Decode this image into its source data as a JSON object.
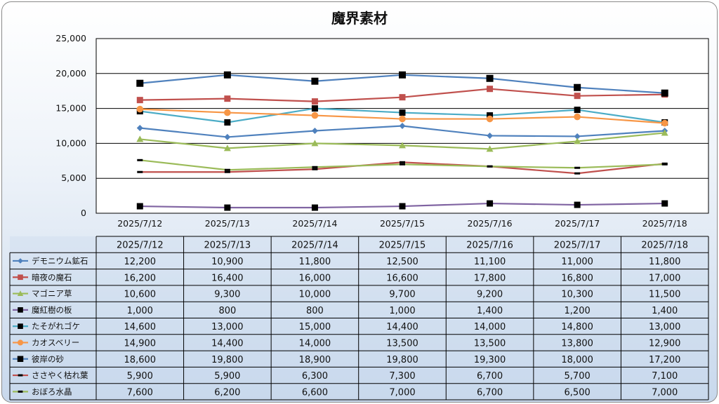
{
  "chart_data": {
    "type": "line",
    "title": "魔界素材",
    "xlabel": "",
    "ylabel": "",
    "ylim": [
      0,
      25000
    ],
    "yticks": [
      "0",
      "5,000",
      "10,000",
      "15,000",
      "20,000",
      "25,000"
    ],
    "grid": true,
    "legend": "data-table",
    "categories": [
      "2025/7/12",
      "2025/7/13",
      "2025/7/14",
      "2025/7/15",
      "2025/7/16",
      "2025/7/17",
      "2025/7/18"
    ],
    "series": [
      {
        "name": "デモニウム鉱石",
        "color": "#4F81BD",
        "marker": "diamond",
        "line": true,
        "values": [
          12200,
          10900,
          11800,
          12500,
          11100,
          11000,
          11800
        ],
        "labels": [
          "12,200",
          "10,900",
          "11,800",
          "12,500",
          "11,100",
          "11,000",
          "11,800"
        ]
      },
      {
        "name": "暗夜の魔石",
        "color": "#C0504D",
        "marker": "square",
        "line": true,
        "values": [
          16200,
          16400,
          16000,
          16600,
          17800,
          16800,
          17000
        ],
        "labels": [
          "16,200",
          "16,400",
          "16,000",
          "16,600",
          "17,800",
          "16,800",
          "17,000"
        ]
      },
      {
        "name": "マゴニア草",
        "color": "#9BBB59",
        "marker": "triangle",
        "line": true,
        "values": [
          10600,
          9300,
          10000,
          9700,
          9200,
          10300,
          11500
        ],
        "labels": [
          "10,600",
          "9,300",
          "10,000",
          "9,700",
          "9,200",
          "10,300",
          "11,500"
        ]
      },
      {
        "name": "魔紅樹の板",
        "color": "#8064A2",
        "marker": "square-black",
        "line": true,
        "values": [
          1000,
          800,
          800,
          1000,
          1400,
          1200,
          1400
        ],
        "labels": [
          "1,000",
          "800",
          "800",
          "1,000",
          "1,400",
          "1,200",
          "1,400"
        ]
      },
      {
        "name": "たそがれゴケ",
        "color": "#4BACC6",
        "marker": "square-black",
        "line": true,
        "values": [
          14600,
          13000,
          15000,
          14400,
          14000,
          14800,
          13000
        ],
        "labels": [
          "14,600",
          "13,000",
          "15,000",
          "14,400",
          "14,000",
          "14,800",
          "13,000"
        ]
      },
      {
        "name": "カオスベリー",
        "color": "#F79646",
        "marker": "circle",
        "line": true,
        "values": [
          14900,
          14400,
          14000,
          13500,
          13500,
          13800,
          12900
        ],
        "labels": [
          "14,900",
          "14,400",
          "14,000",
          "13,500",
          "13,500",
          "13,800",
          "12,900"
        ]
      },
      {
        "name": "彼岸の砂",
        "color": "#4F81BD",
        "marker": "square-black-large",
        "line": true,
        "values": [
          18600,
          19800,
          18900,
          19800,
          19300,
          18000,
          17200
        ],
        "labels": [
          "18,600",
          "19,800",
          "18,900",
          "19,800",
          "19,300",
          "18,000",
          "17,200"
        ]
      },
      {
        "name": "ささやく枯れ葉",
        "color": "#C0504D",
        "marker": "dash-black",
        "line": true,
        "values": [
          5900,
          5900,
          6300,
          7300,
          6700,
          5700,
          7100
        ],
        "labels": [
          "5,900",
          "5,900",
          "6,300",
          "7,300",
          "6,700",
          "5,700",
          "7,100"
        ]
      },
      {
        "name": "おぼろ水晶",
        "color": "#9BBB59",
        "marker": "dash-black",
        "line": true,
        "values": [
          7600,
          6200,
          6600,
          7000,
          6700,
          6500,
          7000
        ],
        "labels": [
          "7,600",
          "6,200",
          "6,600",
          "7,000",
          "6,700",
          "6,500",
          "7,000"
        ]
      }
    ]
  }
}
